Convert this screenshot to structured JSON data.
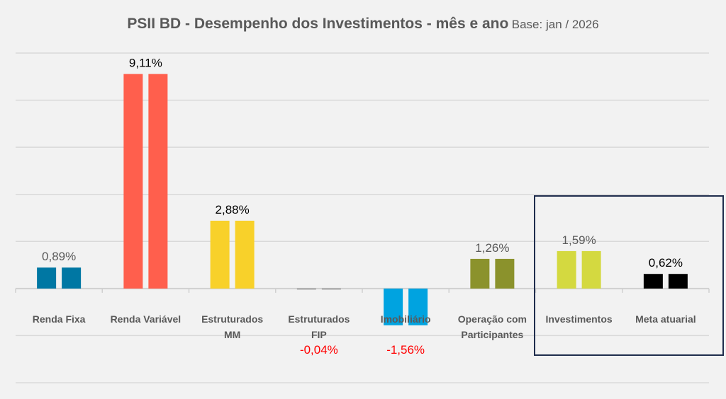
{
  "chart_data": {
    "type": "bar",
    "title": "PSII BD - Desempenho dos Investimentos - mês e ano",
    "subtitle": "Base: jan / 2026",
    "categories": [
      [
        "Renda Fixa"
      ],
      [
        "Renda Variável"
      ],
      [
        "Estruturados",
        "MM"
      ],
      [
        "Estruturados",
        "FIP"
      ],
      [
        "Imobiliário"
      ],
      [
        "Operação com",
        "Participantes"
      ],
      [
        "Investimentos"
      ],
      [
        "Meta atuarial"
      ]
    ],
    "series": [
      {
        "values": [
          0.89,
          9.11,
          2.88,
          -0.04,
          -1.56,
          1.26,
          1.59,
          0.62
        ]
      },
      {
        "values": [
          0.89,
          9.11,
          2.88,
          -0.04,
          -1.56,
          1.26,
          1.59,
          0.62
        ]
      }
    ],
    "data_labels": [
      "0,89%",
      "9,11%",
      "2,88%",
      "-0,04%",
      "-1,56%",
      "1,26%",
      "1,59%",
      "0,62%"
    ],
    "label_colors": [
      "#595959",
      "#000000",
      "#000000",
      "#FF0000",
      "#FF0000",
      "#595959",
      "#595959",
      "#000000"
    ],
    "colors": [
      "#0077A3",
      "#FF5F4D",
      "#F8D12A",
      "#7F7F7F",
      "#00A3E0",
      "#8B922C",
      "#D4D940",
      "#000000"
    ],
    "ylim": [
      -4,
      10
    ],
    "ytick_step": 2,
    "grid": true,
    "y_axis_labels": false,
    "highlight_box": [
      "Investimentos",
      "Meta atuarial"
    ],
    "highlight_color": "#1F2D4D"
  }
}
